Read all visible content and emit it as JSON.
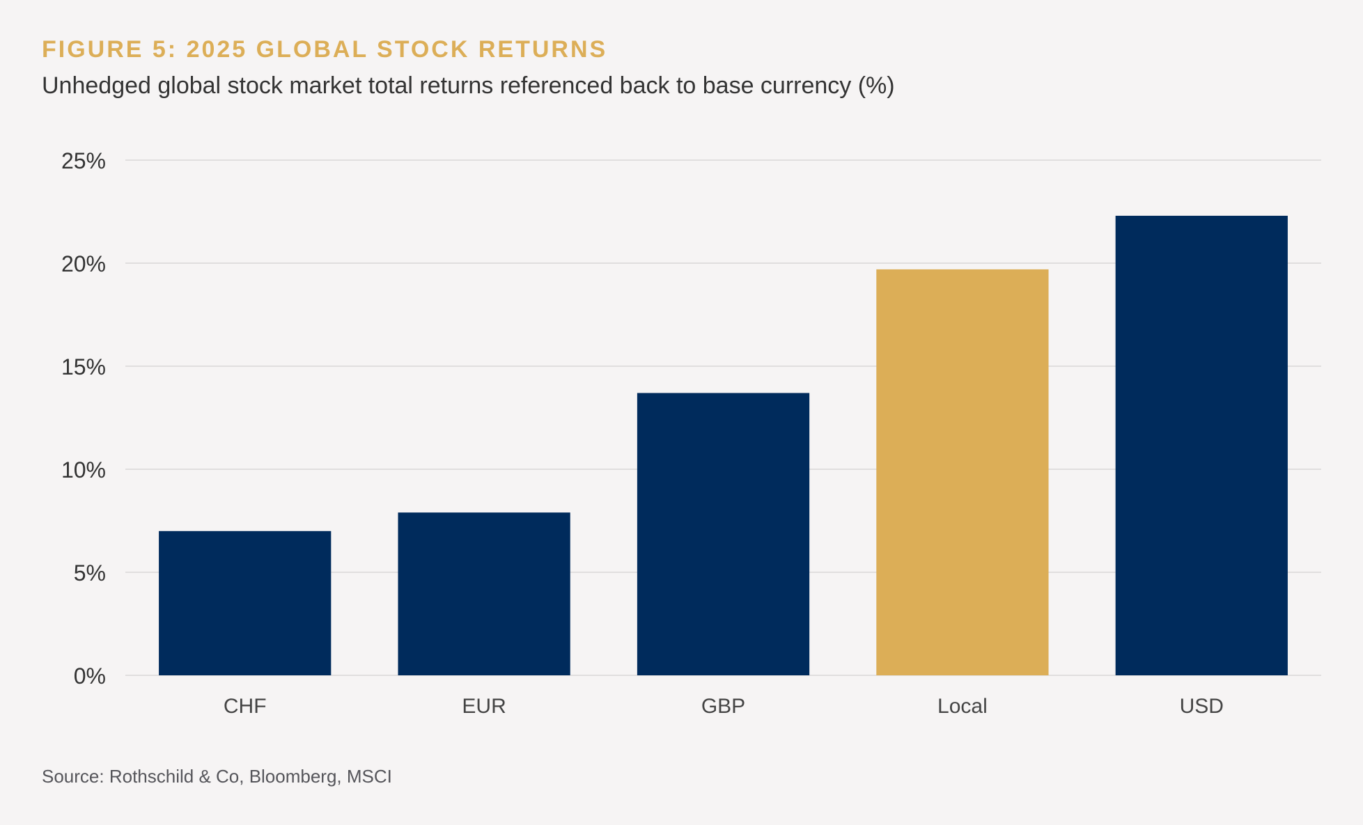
{
  "header": {
    "title": "FIGURE 5: 2025 GLOBAL STOCK RETURNS",
    "subtitle": "Unhedged global stock market total returns referenced back to base currency (%)"
  },
  "footer": {
    "source": "Source: Rothschild & Co, Bloomberg, MSCI"
  },
  "colors": {
    "background": "#f6f4f4",
    "title": "#dcae57",
    "bar_primary": "#002b5c",
    "bar_highlight": "#dcae57",
    "gridline": "#d3d1d1",
    "axis_text": "#333333"
  },
  "chart_data": {
    "type": "bar",
    "title": "FIGURE 5: 2025 GLOBAL STOCK RETURNS",
    "subtitle": "Unhedged global stock market total returns referenced back to base currency (%)",
    "xlabel": "",
    "ylabel": "",
    "categories": [
      "CHF",
      "EUR",
      "GBP",
      "Local",
      "USD"
    ],
    "values": [
      7.0,
      7.9,
      13.7,
      19.7,
      22.3
    ],
    "highlight": [
      "Local"
    ],
    "ylim": [
      0,
      25
    ],
    "yticks": [
      0,
      5,
      10,
      15,
      20,
      25
    ],
    "ytick_labels": [
      "0%",
      "5%",
      "10%",
      "15%",
      "20%",
      "25%"
    ],
    "grid": true,
    "legend": "none"
  }
}
